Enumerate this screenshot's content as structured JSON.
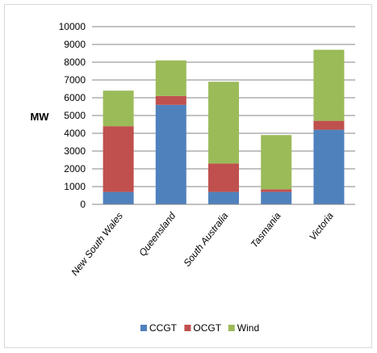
{
  "chart_data": {
    "type": "bar",
    "stacked": true,
    "title": "",
    "xlabel": "",
    "ylabel": "MW",
    "ylim": [
      0,
      10000
    ],
    "yticks": [
      0,
      1000,
      2000,
      3000,
      4000,
      5000,
      6000,
      7000,
      8000,
      9000,
      10000
    ],
    "grid": true,
    "legend_position": "bottom",
    "categories": [
      "New South Wales",
      "Queensland",
      "South Australia",
      "Tasmania",
      "Victoria"
    ],
    "series": [
      {
        "name": "CCGT",
        "color": "#4f81bd",
        "values": [
          700,
          5600,
          700,
          700,
          4200
        ]
      },
      {
        "name": "OCGT",
        "color": "#c0504d",
        "values": [
          3700,
          500,
          1600,
          150,
          500
        ]
      },
      {
        "name": "Wind",
        "color": "#9bbb59",
        "values": [
          2000,
          2000,
          4600,
          3050,
          4000
        ]
      }
    ]
  }
}
